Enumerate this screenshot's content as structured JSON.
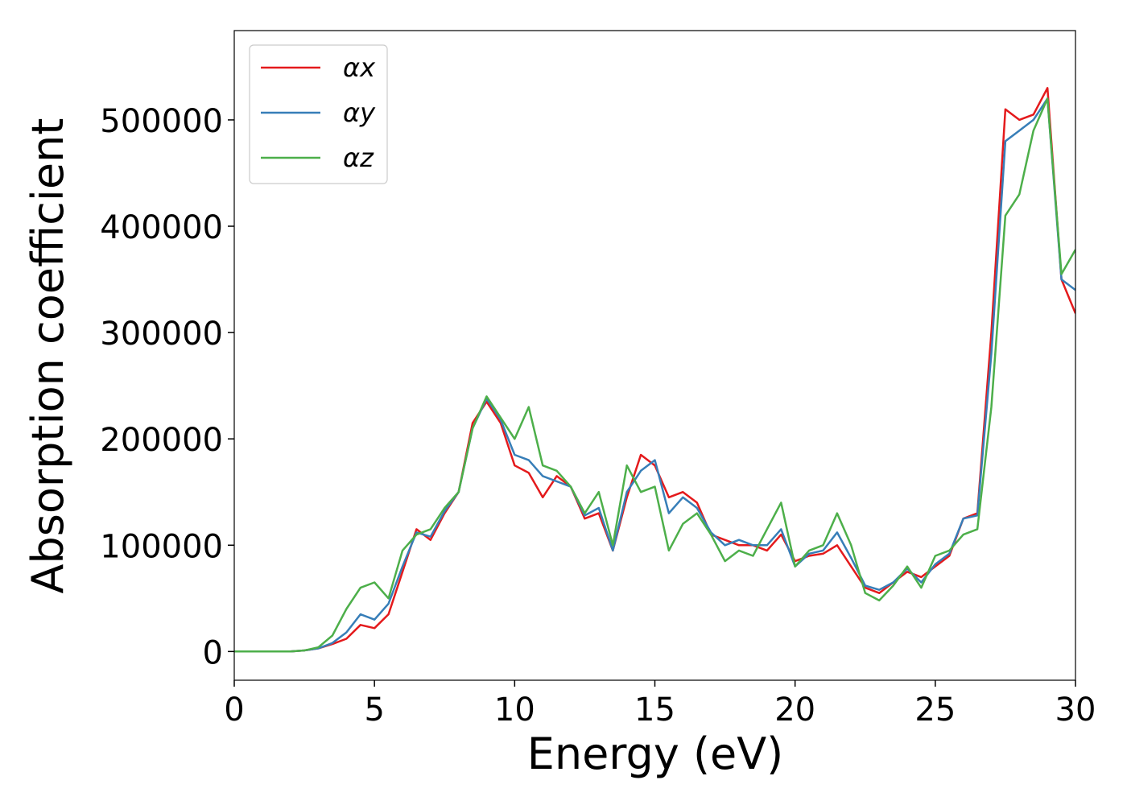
{
  "chart_data": {
    "type": "line",
    "xlabel": "Energy (eV)",
    "ylabel": "Absorption coefficient",
    "x": [
      0,
      0.5,
      1,
      1.5,
      2,
      2.5,
      3,
      3.5,
      4,
      4.5,
      5,
      5.5,
      6,
      6.5,
      7,
      7.5,
      8,
      8.5,
      9,
      9.5,
      10,
      10.5,
      11,
      11.5,
      12,
      12.5,
      13,
      13.5,
      14,
      14.5,
      15,
      15.5,
      16,
      16.5,
      17,
      17.5,
      18,
      18.5,
      19,
      19.5,
      20,
      20.5,
      21,
      21.5,
      22,
      22.5,
      23,
      23.5,
      24,
      24.5,
      25,
      25.5,
      26,
      26.5,
      27,
      27.5,
      28,
      28.5,
      29,
      29.5,
      30
    ],
    "series": [
      {
        "name": "αx",
        "color": "#e41a1c",
        "values": [
          0,
          0,
          0,
          0,
          0,
          1000,
          3000,
          7000,
          12000,
          25000,
          22000,
          35000,
          75000,
          115000,
          105000,
          130000,
          150000,
          215000,
          235000,
          215000,
          175000,
          168000,
          145000,
          165000,
          155000,
          125000,
          130000,
          95000,
          145000,
          185000,
          175000,
          145000,
          150000,
          140000,
          110000,
          105000,
          100000,
          100000,
          95000,
          110000,
          85000,
          90000,
          92000,
          100000,
          80000,
          60000,
          55000,
          65000,
          75000,
          70000,
          80000,
          90000,
          125000,
          130000,
          300000,
          510000,
          500000,
          505000,
          530000,
          350000,
          318000
        ]
      },
      {
        "name": "αy",
        "color": "#377eb8",
        "values": [
          0,
          0,
          0,
          0,
          0,
          1000,
          3000,
          8000,
          18000,
          35000,
          30000,
          45000,
          80000,
          112000,
          108000,
          132000,
          150000,
          210000,
          238000,
          218000,
          185000,
          180000,
          165000,
          160000,
          155000,
          128000,
          135000,
          95000,
          150000,
          170000,
          180000,
          130000,
          145000,
          135000,
          112000,
          100000,
          105000,
          100000,
          100000,
          115000,
          80000,
          92000,
          95000,
          112000,
          88000,
          62000,
          58000,
          65000,
          78000,
          65000,
          82000,
          92000,
          125000,
          128000,
          280000,
          480000,
          490000,
          500000,
          520000,
          350000,
          340000
        ]
      },
      {
        "name": "αz",
        "color": "#4daf4a",
        "values": [
          0,
          0,
          0,
          0,
          0,
          1000,
          4000,
          15000,
          40000,
          60000,
          65000,
          50000,
          95000,
          110000,
          115000,
          135000,
          150000,
          210000,
          240000,
          220000,
          200000,
          230000,
          175000,
          170000,
          155000,
          130000,
          150000,
          100000,
          175000,
          150000,
          155000,
          95000,
          120000,
          130000,
          110000,
          85000,
          95000,
          90000,
          115000,
          140000,
          80000,
          95000,
          100000,
          130000,
          100000,
          55000,
          48000,
          62000,
          80000,
          60000,
          90000,
          95000,
          110000,
          115000,
          230000,
          410000,
          430000,
          490000,
          520000,
          355000,
          378000
        ]
      }
    ],
    "xlim": [
      0,
      30
    ],
    "xticks": [
      0,
      5,
      10,
      15,
      20,
      25,
      30
    ],
    "ylim": [
      -27000,
      584000
    ],
    "yticks": [
      0,
      100000,
      200000,
      300000,
      400000,
      500000
    ],
    "legend": "upper left",
    "grid": false
  }
}
